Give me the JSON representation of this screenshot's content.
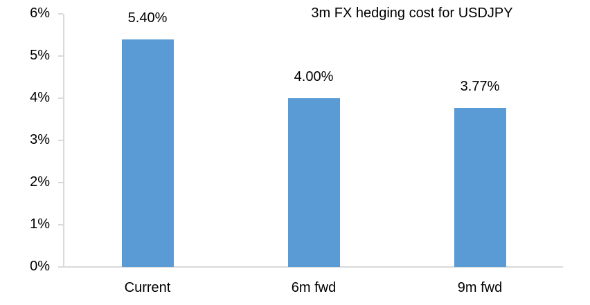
{
  "chart_data": {
    "type": "bar",
    "title": "3m FX hedging cost for USDJPY",
    "categories": [
      "Current",
      "6m fwd",
      "9m fwd"
    ],
    "values": [
      5.4,
      4.0,
      3.77
    ],
    "data_labels": [
      "5.40%",
      "4.00%",
      "3.77%"
    ],
    "xlabel": "",
    "ylabel": "",
    "ylim": [
      0,
      6
    ],
    "ytick_step": 1,
    "ytick_labels": [
      "0%",
      "1%",
      "2%",
      "3%",
      "4%",
      "5%",
      "6%"
    ],
    "grid": "off",
    "legend_position": "none",
    "colors": {
      "bar": "#5B9BD5",
      "axis": "#D9D9D9",
      "text": "#000000",
      "background": "#FFFFFF"
    }
  }
}
